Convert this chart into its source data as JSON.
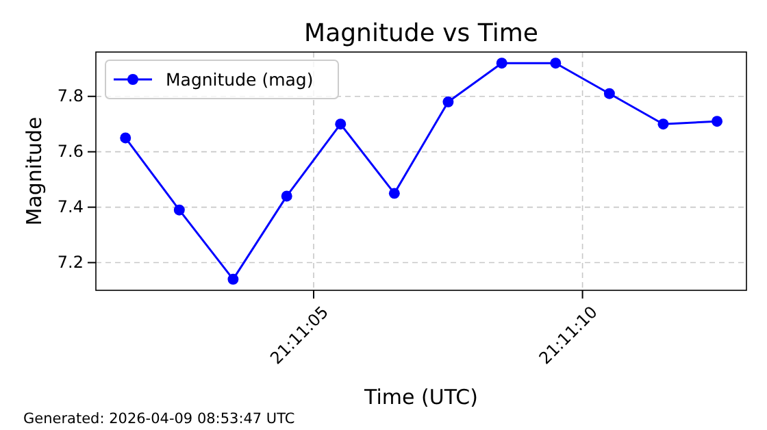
{
  "chart_data": {
    "type": "line",
    "title": "Magnitude vs Time",
    "xlabel": "Time (UTC)",
    "ylabel": "Magnitude",
    "x": [
      21.18375,
      21.184028,
      21.184306,
      21.184583,
      21.184861,
      21.185139,
      21.185417,
      21.185694,
      21.185972,
      21.18625,
      21.186528,
      21.186806
    ],
    "series": [
      {
        "name": "Magnitude (mag)",
        "color": "#0000ff",
        "values": [
          7.65,
          7.39,
          7.14,
          7.44,
          7.7,
          7.45,
          7.78,
          7.92,
          7.92,
          7.81,
          7.7,
          7.71
        ]
      }
    ],
    "xlim": [
      21.183597,
      21.186958
    ],
    "xticks": [
      {
        "value": 21.184722,
        "label": "21:11:05"
      },
      {
        "value": 21.186111,
        "label": "21:11:10"
      }
    ],
    "ylim": [
      7.1,
      7.96
    ],
    "yticks": [
      7.2,
      7.4,
      7.6,
      7.8
    ],
    "grid": true,
    "legend": "top left",
    "marker": "circle",
    "line_style": "solid",
    "annotations": [
      "Generated: 2026-04-09 08:53:47 UTC"
    ]
  }
}
